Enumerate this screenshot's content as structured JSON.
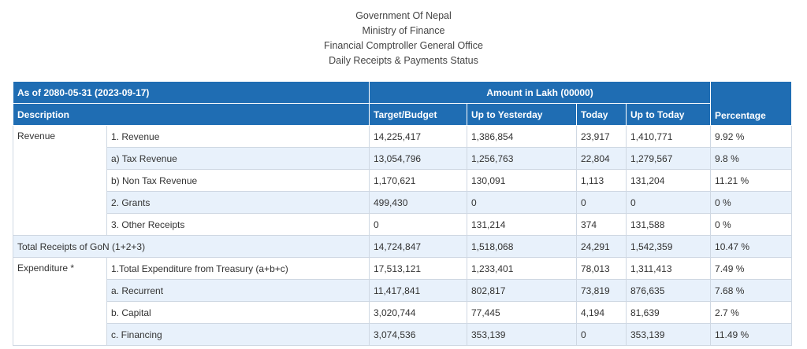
{
  "header": {
    "line1": "Government Of Nepal",
    "line2": "Ministry of Finance",
    "line3": "Financial Comptroller General Office",
    "line4": "Daily Receipts & Payments Status"
  },
  "table": {
    "as_of": "As of 2080-05-31 (2023-09-17)",
    "amount_label": "Amount in Lakh (00000)",
    "columns": {
      "description": "Description",
      "target": "Target/Budget",
      "up_to_yesterday": "Up to Yesterday",
      "today": "Today",
      "up_to_today": "Up to Today",
      "percentage": "Percentage"
    },
    "revenue_group": "Revenue",
    "expenditure_group": "Expenditure *",
    "rows": [
      {
        "label": "1. Revenue",
        "target": "14,225,417",
        "yesterday": "1,386,854",
        "today": "23,917",
        "uptoday": "1,410,771",
        "pct": "9.92 %"
      },
      {
        "label": "a) Tax Revenue",
        "target": "13,054,796",
        "yesterday": "1,256,763",
        "today": "22,804",
        "uptoday": "1,279,567",
        "pct": "9.8 %"
      },
      {
        "label": "b) Non Tax Revenue",
        "target": "1,170,621",
        "yesterday": "130,091",
        "today": "1,113",
        "uptoday": "131,204",
        "pct": "11.21 %"
      },
      {
        "label": "2. Grants",
        "target": "499,430",
        "yesterday": "0",
        "today": "0",
        "uptoday": "0",
        "pct": "0 %"
      },
      {
        "label": "3. Other Receipts",
        "target": "0",
        "yesterday": "131,214",
        "today": "374",
        "uptoday": "131,588",
        "pct": "0 %"
      },
      {
        "label": "Total Receipts of GoN (1+2+3)",
        "target": "14,724,847",
        "yesterday": "1,518,068",
        "today": "24,291",
        "uptoday": "1,542,359",
        "pct": "10.47 %"
      },
      {
        "label": "1.Total Expenditure from Treasury (a+b+c)",
        "target": "17,513,121",
        "yesterday": "1,233,401",
        "today": "78,013",
        "uptoday": "1,311,413",
        "pct": "7.49 %"
      },
      {
        "label": "a. Recurrent",
        "target": "11,417,841",
        "yesterday": "802,817",
        "today": "73,819",
        "uptoday": "876,635",
        "pct": "7.68 %"
      },
      {
        "label": "b. Capital",
        "target": "3,020,744",
        "yesterday": "77,445",
        "today": "4,194",
        "uptoday": "81,639",
        "pct": "2.7 %"
      },
      {
        "label": "c. Financing",
        "target": "3,074,536",
        "yesterday": "353,139",
        "today": "0",
        "uptoday": "353,139",
        "pct": "11.49 %"
      }
    ]
  }
}
